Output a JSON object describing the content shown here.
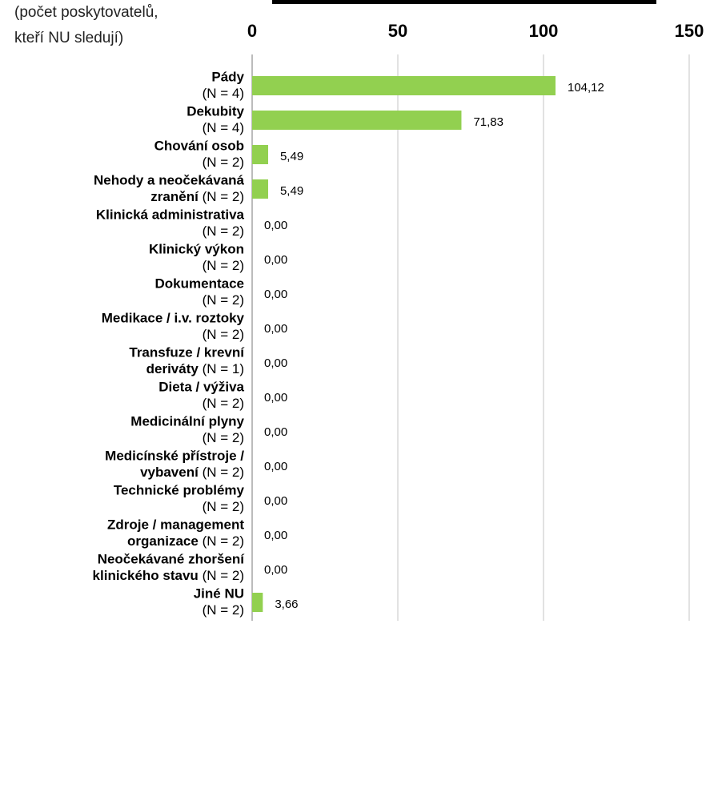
{
  "chart_data": {
    "type": "bar",
    "orientation": "horizontal",
    "note_lines": [
      "(počet poskytovatelů,",
      "kteří NU sledují)"
    ],
    "categories": [
      [
        "Pády"
      ],
      [
        "Dekubity"
      ],
      [
        "Chování osob"
      ],
      [
        "Nehody a neočekávaná",
        "zranění"
      ],
      [
        "Klinická administrativa"
      ],
      [
        "Klinický výkon"
      ],
      [
        "Dokumentace"
      ],
      [
        "Medikace / i.v. roztoky"
      ],
      [
        "Transfuze / krevní",
        "deriváty"
      ],
      [
        "Dieta / výživa"
      ],
      [
        "Medicinální plyny"
      ],
      [
        "Medicínské přístroje /",
        "vybavení"
      ],
      [
        "Technické problémy"
      ],
      [
        "Zdroje / management",
        "organizace"
      ],
      [
        "Neočekávané zhoršení",
        "klinického stavu"
      ],
      [
        "Jiné NU"
      ]
    ],
    "category_counts": [
      "(N = 4)",
      "(N = 4)",
      "(N = 2)",
      "(N = 2)",
      "(N = 2)",
      "(N = 2)",
      "(N = 2)",
      "(N = 2)",
      "(N = 1)",
      "(N = 2)",
      "(N = 2)",
      "(N = 2)",
      "(N = 2)",
      "(N = 2)",
      "(N = 2)",
      "(N = 2)"
    ],
    "values": [
      104.12,
      71.83,
      5.49,
      5.49,
      0,
      0,
      0,
      0,
      0,
      0,
      0,
      0,
      0,
      0,
      0,
      3.66
    ],
    "value_labels": [
      "104,12",
      "71,83",
      "5,49",
      "5,49",
      "0,00",
      "0,00",
      "0,00",
      "0,00",
      "0,00",
      "0,00",
      "0,00",
      "0,00",
      "0,00",
      "0,00",
      "0,00",
      "3,66"
    ],
    "color": "#92d050",
    "xlim": [
      0,
      150
    ],
    "xticks": [
      0,
      50,
      100,
      150
    ],
    "grid": true
  }
}
